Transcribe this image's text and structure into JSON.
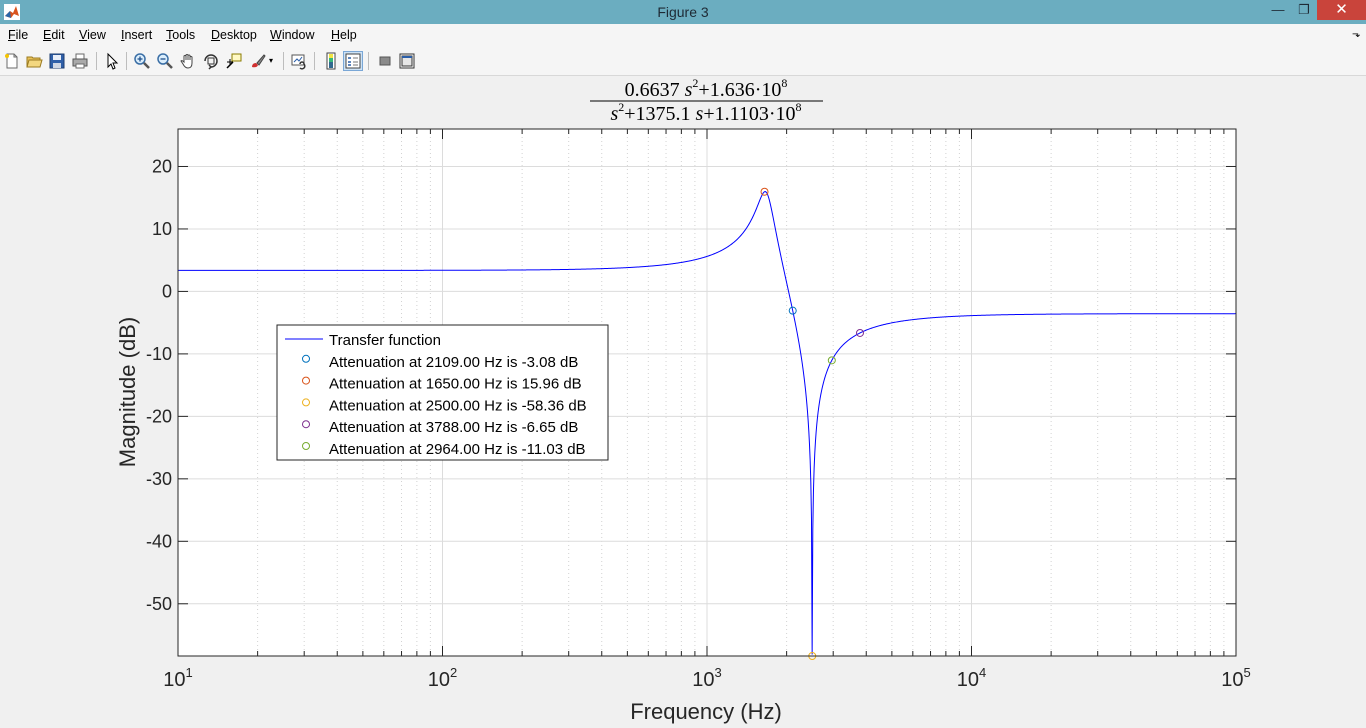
{
  "window": {
    "title": "Figure 3",
    "minimize": "—",
    "maximize": "❐",
    "close": "✕"
  },
  "menu": [
    {
      "label": "File",
      "key": "F",
      "rest": "ile"
    },
    {
      "label": "Edit",
      "key": "E",
      "rest": "dit"
    },
    {
      "label": "View",
      "key": "V",
      "rest": "iew"
    },
    {
      "label": "Insert",
      "key": "I",
      "rest": "nsert"
    },
    {
      "label": "Tools",
      "key": "T",
      "rest": "ools"
    },
    {
      "label": "Desktop",
      "key": "D",
      "rest": "esktop"
    },
    {
      "label": "Window",
      "key": "W",
      "rest": "indow"
    },
    {
      "label": "Help",
      "key": "H",
      "rest": "elp"
    }
  ],
  "toolbar": [
    "new-figure-icon",
    "open-file-icon",
    "save-icon",
    "print-icon",
    "edit-plot-arrow-icon",
    "zoom-in-icon",
    "zoom-out-icon",
    "pan-hand-icon",
    "rotate-3d-icon",
    "data-cursor-icon",
    "brush-icon",
    "link-plot-icon",
    "insert-colorbar-icon",
    "insert-legend-icon",
    "hide-plot-tools-icon",
    "show-plot-tools-icon"
  ],
  "chart_data": {
    "type": "line",
    "title": {
      "num": [
        "0.6637 ",
        "s",
        "2",
        "+1.636·10",
        "8"
      ],
      "den": [
        "s",
        "2",
        "+1375.1 ",
        "s",
        "+1.1103·10",
        "8"
      ]
    },
    "xlabel": "Frequency (Hz)",
    "ylabel": "Magnitude (dB)",
    "xscale": "log",
    "xlim": [
      10,
      100000
    ],
    "ylim": [
      -58.36,
      26
    ],
    "xticks": [
      {
        "base": "10",
        "exp": "1",
        "value": 10
      },
      {
        "base": "10",
        "exp": "2",
        "value": 100
      },
      {
        "base": "10",
        "exp": "3",
        "value": 1000
      },
      {
        "base": "10",
        "exp": "4",
        "value": 10000
      },
      {
        "base": "10",
        "exp": "5",
        "value": 100000
      }
    ],
    "yticks": [
      20,
      10,
      0,
      -10,
      -20,
      -30,
      -40,
      -50
    ],
    "grid": "on, major and minor",
    "legend_position": "center-left",
    "series": [
      {
        "name": "Transfer function",
        "kind": "line",
        "color": "#0000ff",
        "num": [
          0.6637,
          0,
          163600000
        ],
        "den": [
          1,
          1375.1,
          111030000
        ]
      },
      {
        "name": "Attenuation at 2109.00 Hz is -3.08 dB",
        "kind": "marker",
        "color": "#0072bd",
        "x": 2109,
        "y": -3.08
      },
      {
        "name": "Attenuation at 1650.00 Hz is 15.96 dB",
        "kind": "marker",
        "color": "#d95319",
        "x": 1650,
        "y": 15.96
      },
      {
        "name": "Attenuation at 2500.00 Hz is -58.36 dB",
        "kind": "marker",
        "color": "#edb120",
        "x": 2500,
        "y": -58.36
      },
      {
        "name": "Attenuation at 3788.00 Hz is -6.65 dB",
        "kind": "marker",
        "color": "#7e2f8e",
        "x": 3788,
        "y": -6.65
      },
      {
        "name": "Attenuation at 2964.00 Hz is -11.03 dB",
        "kind": "marker",
        "color": "#77ac30",
        "x": 2964,
        "y": -11.03
      }
    ]
  }
}
